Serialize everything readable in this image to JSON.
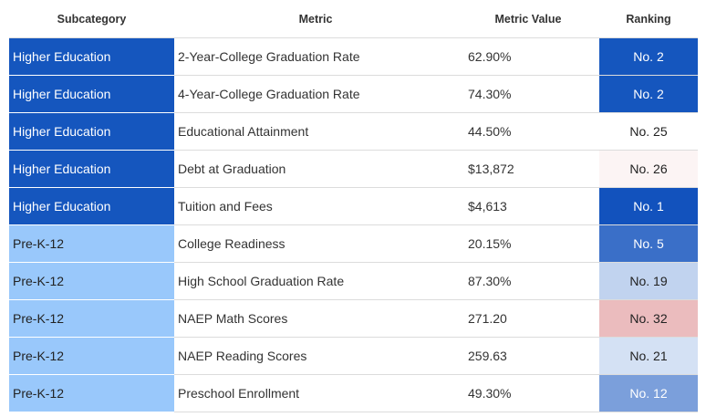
{
  "headers": [
    "Subcategory",
    "Metric",
    "Metric Value",
    "Ranking"
  ],
  "rows": [
    {
      "subcategory": "Higher Education",
      "metric": "2-Year-College Graduation Rate",
      "value": "62.90%",
      "ranking": "No. 2",
      "rank_bg": "#1556be",
      "rank_fg": "#ffffff"
    },
    {
      "subcategory": "Higher Education",
      "metric": "4-Year-College Graduation Rate",
      "value": "74.30%",
      "ranking": "No. 2",
      "rank_bg": "#1556be",
      "rank_fg": "#ffffff"
    },
    {
      "subcategory": "Higher Education",
      "metric": "Educational Attainment",
      "value": "44.50%",
      "ranking": "No. 25",
      "rank_bg": "#ffffff",
      "rank_fg": "#222222"
    },
    {
      "subcategory": "Higher Education",
      "metric": "Debt at Graduation",
      "value": "$13,872",
      "ranking": "No. 26",
      "rank_bg": "#fcf4f4",
      "rank_fg": "#222222"
    },
    {
      "subcategory": "Higher Education",
      "metric": "Tuition and Fees",
      "value": "$4,613",
      "ranking": "No. 1",
      "rank_bg": "#1252bd",
      "rank_fg": "#ffffff"
    },
    {
      "subcategory": "Pre-K-12",
      "metric": "College Readiness",
      "value": "20.15%",
      "ranking": "No. 5",
      "rank_bg": "#3a6fc8",
      "rank_fg": "#ffffff"
    },
    {
      "subcategory": "Pre-K-12",
      "metric": "High School Graduation Rate",
      "value": "87.30%",
      "ranking": "No. 19",
      "rank_bg": "#c1d3ef",
      "rank_fg": "#222222"
    },
    {
      "subcategory": "Pre-K-12",
      "metric": "NAEP Math Scores",
      "value": "271.20",
      "ranking": "No. 32",
      "rank_bg": "#ebbcbe",
      "rank_fg": "#222222"
    },
    {
      "subcategory": "Pre-K-12",
      "metric": "NAEP Reading Scores",
      "value": "259.63",
      "ranking": "No. 21",
      "rank_bg": "#d4e1f4",
      "rank_fg": "#222222"
    },
    {
      "subcategory": "Pre-K-12",
      "metric": "Preschool Enrollment",
      "value": "49.30%",
      "ranking": "No. 12",
      "rank_bg": "#7b9fdb",
      "rank_fg": "#ffffff"
    }
  ]
}
